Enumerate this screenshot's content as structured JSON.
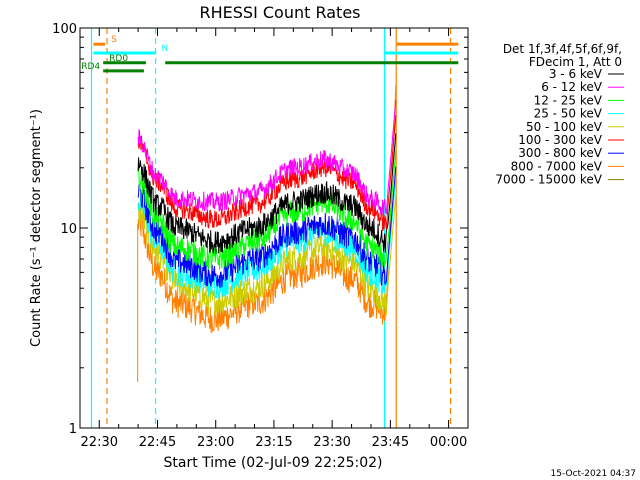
{
  "chart_data": {
    "type": "line",
    "title": "RHESSI Count Rates",
    "xlabel": "Start Time (02-Jul-09 22:25:02)",
    "ylabel": "Count Rate (s⁻¹ detector segment⁻¹)",
    "yscale": "log",
    "ylim": [
      1,
      100
    ],
    "xlim": [
      "22:25:02",
      "00:05:00"
    ],
    "y_ticks": [
      "1",
      "10",
      "100"
    ],
    "x_ticks": [
      "22:30",
      "22:45",
      "23:00",
      "23:15",
      "23:30",
      "23:45",
      "00:00"
    ],
    "legend_header": [
      "Det 1f,3f,4f,5f,6f,9f,",
      "FDecim 1, Att 0"
    ],
    "legend_position": "right",
    "footer": "15-Oct-2021 04:37",
    "flags": [
      {
        "label": "S",
        "color": "#ff8000",
        "y": 83,
        "segments": [
          [
            "22:28:30",
            "22:31:30"
          ],
          [
            "23:46:30",
            "00:02:30"
          ]
        ]
      },
      {
        "label": "N",
        "color": "#00ffff",
        "y": 75,
        "segments": [
          [
            "22:28:30",
            "22:44:30"
          ],
          [
            "23:43:30",
            "00:02:30"
          ]
        ]
      },
      {
        "label": "RD0",
        "color": "#008000",
        "y": 67,
        "segments": [
          [
            "22:31:00",
            "22:42:00"
          ],
          [
            "22:47:00",
            "00:02:30"
          ]
        ]
      },
      {
        "label": "RD4",
        "color": "#008000",
        "y": 61,
        "segments": [
          [
            "22:31:00",
            "22:41:30"
          ]
        ]
      }
    ],
    "vlines": [
      {
        "x": "22:28:00",
        "color": "#00ffff",
        "style": "solid"
      },
      {
        "x": "22:32:00",
        "color": "#ff8000",
        "style": "dashed"
      },
      {
        "x": "22:44:30",
        "color": "#00ffff",
        "style": "dashed"
      },
      {
        "x": "23:43:30",
        "color": "#00ffff",
        "style": "solid"
      },
      {
        "x": "23:46:30",
        "color": "#ff8000",
        "style": "solid"
      },
      {
        "x": "00:00:30",
        "color": "#ff8000",
        "style": "dashed"
      }
    ],
    "series": [
      {
        "name": "3 - 6 keV",
        "color": "#000000",
        "values": [
          {
            "x": "22:40",
            "y": 21
          },
          {
            "x": "22:45",
            "y": 13
          },
          {
            "x": "22:50",
            "y": 10
          },
          {
            "x": "23:00",
            "y": 8.5
          },
          {
            "x": "23:10",
            "y": 10
          },
          {
            "x": "23:20",
            "y": 13.5
          },
          {
            "x": "23:28",
            "y": 15
          },
          {
            "x": "23:35",
            "y": 13
          },
          {
            "x": "23:40",
            "y": 10
          },
          {
            "x": "23:44",
            "y": 8.5
          }
        ]
      },
      {
        "name": "6 - 12 keV",
        "color": "#ff00ff",
        "values": [
          {
            "x": "22:40",
            "y": 28
          },
          {
            "x": "22:45",
            "y": 18
          },
          {
            "x": "22:50",
            "y": 14
          },
          {
            "x": "23:00",
            "y": 13.5
          },
          {
            "x": "23:10",
            "y": 15
          },
          {
            "x": "23:20",
            "y": 20
          },
          {
            "x": "23:28",
            "y": 22
          },
          {
            "x": "23:35",
            "y": 19
          },
          {
            "x": "23:40",
            "y": 14
          },
          {
            "x": "23:44",
            "y": 12.5
          }
        ]
      },
      {
        "name": "12 - 25 keV",
        "color": "#00ff00",
        "values": [
          {
            "x": "22:40",
            "y": 18
          },
          {
            "x": "22:45",
            "y": 11
          },
          {
            "x": "22:50",
            "y": 8
          },
          {
            "x": "23:00",
            "y": 7
          },
          {
            "x": "23:10",
            "y": 8.5
          },
          {
            "x": "23:20",
            "y": 12
          },
          {
            "x": "23:28",
            "y": 13.5
          },
          {
            "x": "23:35",
            "y": 11
          },
          {
            "x": "23:40",
            "y": 8
          },
          {
            "x": "23:44",
            "y": 7
          }
        ]
      },
      {
        "name": "25 - 50 keV",
        "color": "#00ffff",
        "values": [
          {
            "x": "22:40",
            "y": 13.5
          },
          {
            "x": "22:45",
            "y": 8.5
          },
          {
            "x": "22:50",
            "y": 6
          },
          {
            "x": "23:00",
            "y": 5.2
          },
          {
            "x": "23:10",
            "y": 6.2
          },
          {
            "x": "23:20",
            "y": 8.6
          },
          {
            "x": "23:28",
            "y": 9.5
          },
          {
            "x": "23:35",
            "y": 8
          },
          {
            "x": "23:40",
            "y": 6
          },
          {
            "x": "23:44",
            "y": 5.2
          }
        ]
      },
      {
        "name": "50 - 100 keV",
        "color": "#cccc00",
        "values": [
          {
            "x": "22:40",
            "y": 12
          },
          {
            "x": "22:45",
            "y": 7.5
          },
          {
            "x": "22:50",
            "y": 5.2
          },
          {
            "x": "23:00",
            "y": 4.3
          },
          {
            "x": "23:10",
            "y": 5
          },
          {
            "x": "23:20",
            "y": 7
          },
          {
            "x": "23:28",
            "y": 8
          },
          {
            "x": "23:35",
            "y": 6.8
          },
          {
            "x": "23:40",
            "y": 5
          },
          {
            "x": "23:44",
            "y": 4.2
          }
        ]
      },
      {
        "name": "100 - 300 keV",
        "color": "#ff0000",
        "values": [
          {
            "x": "22:40",
            "y": 27
          },
          {
            "x": "22:45",
            "y": 17
          },
          {
            "x": "22:50",
            "y": 12.5
          },
          {
            "x": "23:00",
            "y": 11
          },
          {
            "x": "23:10",
            "y": 13
          },
          {
            "x": "23:20",
            "y": 17.5
          },
          {
            "x": "23:28",
            "y": 20
          },
          {
            "x": "23:35",
            "y": 17
          },
          {
            "x": "23:40",
            "y": 12.5
          },
          {
            "x": "23:44",
            "y": 10.5
          }
        ]
      },
      {
        "name": "300 - 800 keV",
        "color": "#0000ff",
        "values": [
          {
            "x": "22:40",
            "y": 15
          },
          {
            "x": "22:45",
            "y": 9.5
          },
          {
            "x": "22:50",
            "y": 6.8
          },
          {
            "x": "23:00",
            "y": 5.8
          },
          {
            "x": "23:10",
            "y": 7
          },
          {
            "x": "23:20",
            "y": 9.5
          },
          {
            "x": "23:28",
            "y": 10.5
          },
          {
            "x": "23:35",
            "y": 9
          },
          {
            "x": "23:40",
            "y": 6.8
          },
          {
            "x": "23:44",
            "y": 5.8
          }
        ]
      },
      {
        "name": "800 - 7000 keV",
        "color": "#ff8000",
        "values": [
          {
            "x": "22:40",
            "y": 10.5
          },
          {
            "x": "22:45",
            "y": 6
          },
          {
            "x": "22:50",
            "y": 4.2
          },
          {
            "x": "23:00",
            "y": 3.5
          },
          {
            "x": "23:10",
            "y": 4.2
          },
          {
            "x": "23:20",
            "y": 5.8
          },
          {
            "x": "23:28",
            "y": 6.8
          },
          {
            "x": "23:35",
            "y": 5.6
          },
          {
            "x": "23:40",
            "y": 4.2
          },
          {
            "x": "23:44",
            "y": 3.8
          }
        ]
      },
      {
        "name": "7000 - 15000 keV",
        "color": "#808000",
        "values": []
      }
    ]
  }
}
